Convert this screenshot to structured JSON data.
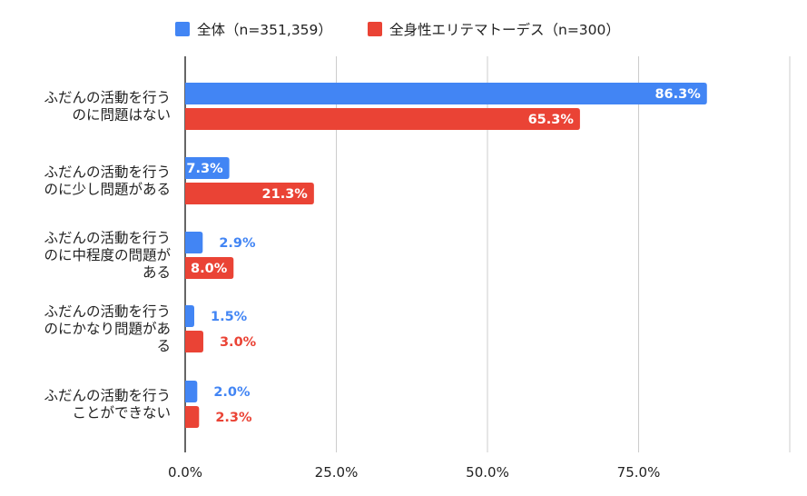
{
  "chart_data": {
    "type": "bar",
    "orientation": "horizontal",
    "categories": [
      [
        "ふだんの活動を行う",
        "のに問題はない"
      ],
      [
        "ふだんの活動を行う",
        "のに少し問題がある"
      ],
      [
        "ふだんの活動を行う",
        "のに中程度の問題が",
        "ある"
      ],
      [
        "ふだんの活動を行う",
        "のにかなり問題があ",
        "る"
      ],
      [
        "ふだんの活動を行う",
        "ことができない"
      ]
    ],
    "series": [
      {
        "name": "全体（n=351,359）",
        "color": "#4285f4",
        "values": [
          86.3,
          7.3,
          2.9,
          1.5,
          2.0
        ]
      },
      {
        "name": "全身性エリテマトーデス（n=300）",
        "color": "#ea4335",
        "values": [
          65.3,
          21.3,
          8.0,
          3.0,
          2.3
        ]
      }
    ],
    "xlim": [
      0,
      100
    ],
    "xticks": [
      0,
      25,
      50,
      75
    ],
    "xtick_labels": [
      "0.0%",
      "25.0%",
      "50.0%",
      "75.0%"
    ],
    "grid": true,
    "legend": "top",
    "title": "",
    "xlabel": "",
    "ylabel": ""
  }
}
